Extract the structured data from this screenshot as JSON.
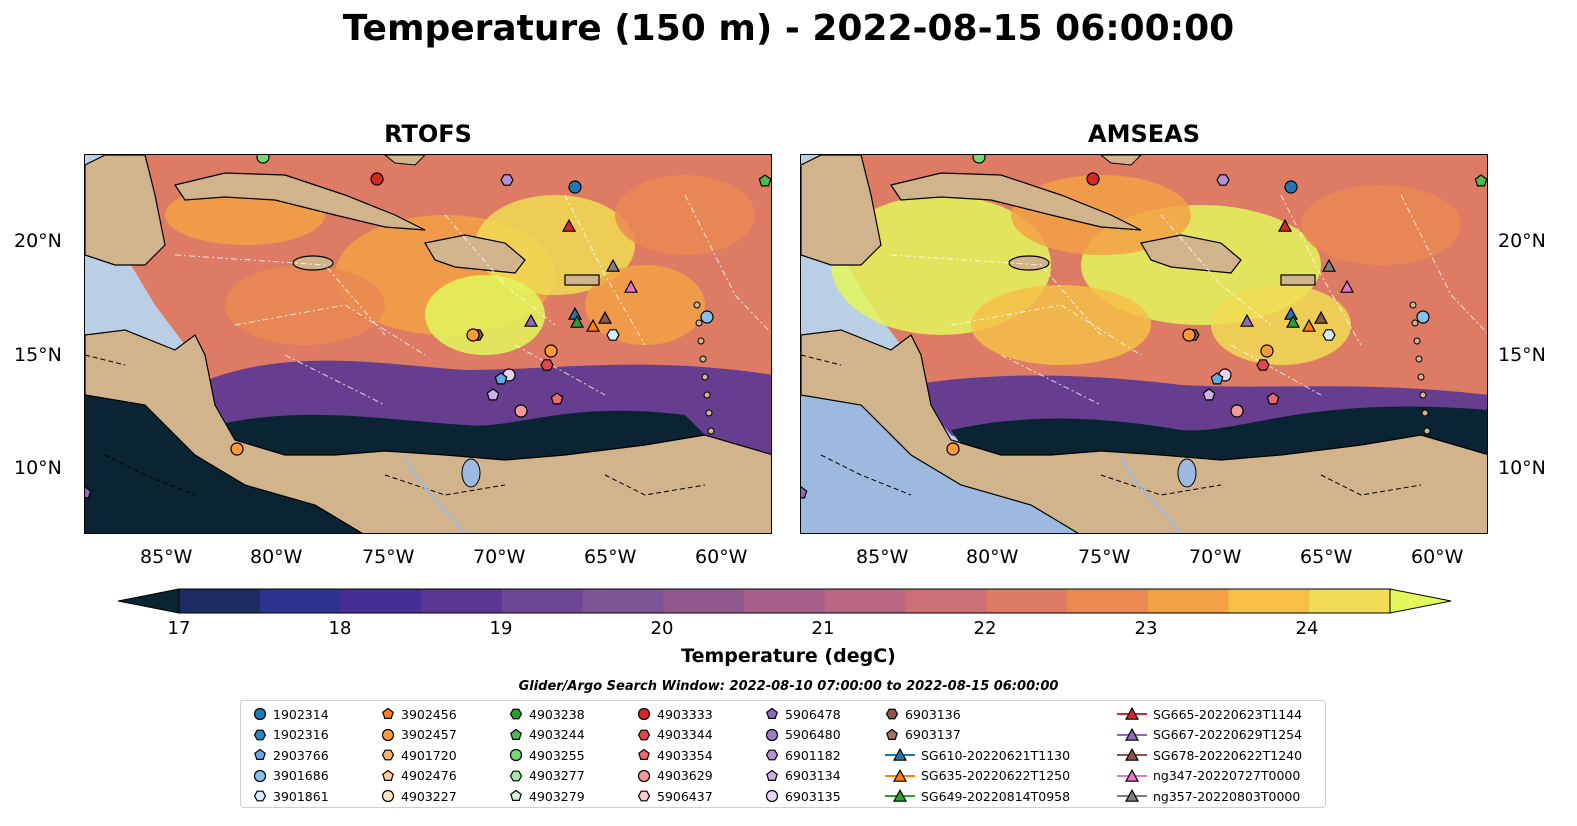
{
  "title": "Temperature (150 m) - 2022-08-15 06:00:00",
  "panels": [
    {
      "title": "RTOFS"
    },
    {
      "title": "AMSEAS"
    }
  ],
  "axes": {
    "lat_labels": [
      "20°N",
      "15°N",
      "10°N"
    ],
    "lon_labels": [
      "85°W",
      "80°W",
      "75°W",
      "70°W",
      "65°W",
      "60°W"
    ]
  },
  "colorbar": {
    "label": "Temperature (degC)",
    "ticks": [
      "17",
      "18",
      "19",
      "20",
      "21",
      "22",
      "23",
      "24"
    ],
    "min": 16.75,
    "max": 24.5,
    "colors": [
      "#0b2433",
      "#1d2b63",
      "#2e3291",
      "#452f96",
      "#5a3695",
      "#6d4696",
      "#7f5495",
      "#92598f",
      "#a6608a",
      "#ba6882",
      "#cc7075",
      "#dd7b64",
      "#ea8a52",
      "#f3a145",
      "#f6bf48",
      "#f1dc55",
      "#e2f75a"
    ]
  },
  "legend": {
    "title": "Glider/Argo Search Window: 2022-08-10 07:00:00 to 2022-08-15 06:00:00",
    "columns": [
      [
        {
          "label": "1902314",
          "marker": "circle",
          "color": "#1f77b4"
        },
        {
          "label": "1902316",
          "marker": "hexagon",
          "color": "#2e86c1"
        },
        {
          "label": "2903766",
          "marker": "pentagon",
          "color": "#5dade2"
        },
        {
          "label": "3901686",
          "marker": "circle",
          "color": "#85c1e9"
        },
        {
          "label": "3901861",
          "marker": "hexagon",
          "color": "#d6eaf8"
        }
      ],
      [
        {
          "label": "3902456",
          "marker": "pentagon",
          "color": "#ff7f0e"
        },
        {
          "label": "3902457",
          "marker": "circle",
          "color": "#ff9a3c"
        },
        {
          "label": "4901720",
          "marker": "hexagon",
          "color": "#ffb26b"
        },
        {
          "label": "4902476",
          "marker": "pentagon",
          "color": "#ffcc99"
        },
        {
          "label": "4903227",
          "marker": "circle",
          "color": "#ffe2c2"
        }
      ],
      [
        {
          "label": "4903238",
          "marker": "hexagon",
          "color": "#2ca02c"
        },
        {
          "label": "4903244",
          "marker": "pentagon",
          "color": "#4cbb4c"
        },
        {
          "label": "4903255",
          "marker": "circle",
          "color": "#74d874"
        },
        {
          "label": "4903277",
          "marker": "hexagon",
          "color": "#a6e6a6"
        },
        {
          "label": "4903279",
          "marker": "pentagon",
          "color": "#d4f5d4"
        }
      ],
      [
        {
          "label": "4903333",
          "marker": "circle",
          "color": "#d62728"
        },
        {
          "label": "4903344",
          "marker": "hexagon",
          "color": "#e0474c"
        },
        {
          "label": "4903354",
          "marker": "pentagon",
          "color": "#e86a6a"
        },
        {
          "label": "4903629",
          "marker": "circle",
          "color": "#f19a9a"
        },
        {
          "label": "5906437",
          "marker": "hexagon",
          "color": "#f9cccc"
        }
      ],
      [
        {
          "label": "5906478",
          "marker": "pentagon",
          "color": "#9467bd"
        },
        {
          "label": "5906480",
          "marker": "circle",
          "color": "#a07cc7"
        },
        {
          "label": "6901182",
          "marker": "hexagon",
          "color": "#b592d6"
        },
        {
          "label": "6903134",
          "marker": "pentagon",
          "color": "#cdb0e6"
        },
        {
          "label": "6903135",
          "marker": "circle",
          "color": "#e4d2f5"
        }
      ],
      [
        {
          "label": "6903136",
          "marker": "hexagon",
          "color": "#8c564b"
        },
        {
          "label": "6903137",
          "marker": "pentagon",
          "color": "#a86e63"
        },
        {
          "label": "SG610-20220621T1130",
          "marker": "triangle-line",
          "color": "#1f77b4"
        },
        {
          "label": "SG635-20220622T1250",
          "marker": "triangle-line",
          "color": "#ff7f0e"
        },
        {
          "label": "SG649-20220814T0958",
          "marker": "triangle-line",
          "color": "#2ca02c"
        }
      ],
      [
        {
          "label": "SG665-20220623T1144",
          "marker": "triangle-line",
          "color": "#d62728"
        },
        {
          "label": "SG667-20220629T1254",
          "marker": "triangle-line",
          "color": "#9467bd"
        },
        {
          "label": "SG678-20220622T1240",
          "marker": "triangle-line",
          "color": "#8c564b"
        },
        {
          "label": "ng347-20220727T0000",
          "marker": "triangle-line",
          "color": "#e377c2"
        },
        {
          "label": "ng357-20220803T0000",
          "marker": "triangle-line",
          "color": "#7f7f7f"
        }
      ]
    ]
  },
  "colors": {
    "land": "#d2b48c",
    "ocean_shallow": "#9db9e0",
    "deep_cold": "#0b2433",
    "warm": "#f3a145",
    "hot": "#e2f75a"
  }
}
